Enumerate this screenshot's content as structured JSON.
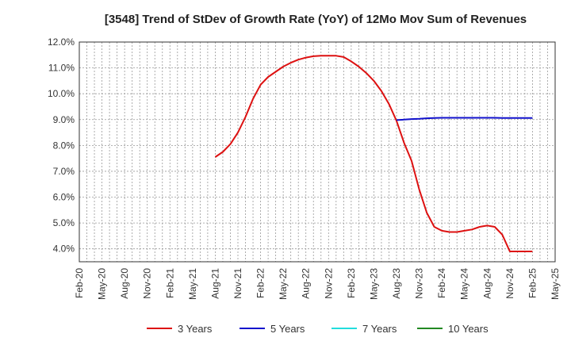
{
  "chart_data": {
    "type": "line",
    "title": "[3548]  Trend of StDev of Growth Rate (YoY) of 12Mo Mov Sum of Revenues",
    "xlabel": "",
    "ylabel": "",
    "ylim": [
      3.5,
      12.0
    ],
    "y_ticks": [
      4.0,
      5.0,
      6.0,
      7.0,
      8.0,
      9.0,
      10.0,
      11.0,
      12.0
    ],
    "y_tick_labels": [
      "4.0%",
      "5.0%",
      "6.0%",
      "7.0%",
      "8.0%",
      "9.0%",
      "10.0%",
      "11.0%",
      "12.0%"
    ],
    "x_tick_labels": [
      "Feb-20",
      "May-20",
      "Aug-20",
      "Nov-20",
      "Feb-21",
      "May-21",
      "Aug-21",
      "Nov-21",
      "Feb-22",
      "May-22",
      "Aug-22",
      "Nov-22",
      "Feb-23",
      "May-23",
      "Aug-23",
      "Nov-23",
      "Feb-24",
      "May-24",
      "Aug-24",
      "Nov-24",
      "Feb-25",
      "May-25"
    ],
    "x_range_months": [
      0,
      63
    ],
    "grid": true,
    "legend_position": "bottom",
    "series": [
      {
        "name": "3 Years",
        "color": "#dd1111",
        "x_months": [
          18,
          19,
          20,
          21,
          22,
          23,
          24,
          25,
          26,
          27,
          28,
          29,
          30,
          31,
          32,
          33,
          34,
          35,
          36,
          37,
          38,
          39,
          40,
          41,
          42,
          43,
          44,
          45,
          46,
          47,
          48,
          49,
          50,
          51,
          52,
          53,
          54,
          55,
          56,
          57,
          58,
          59,
          60
        ],
        "values": [
          7.55,
          7.75,
          8.05,
          8.5,
          9.1,
          9.8,
          10.35,
          10.65,
          10.85,
          11.05,
          11.2,
          11.32,
          11.4,
          11.45,
          11.47,
          11.47,
          11.47,
          11.42,
          11.25,
          11.05,
          10.8,
          10.5,
          10.1,
          9.6,
          8.95,
          8.1,
          7.4,
          6.3,
          5.4,
          4.85,
          4.7,
          4.65,
          4.65,
          4.7,
          4.75,
          4.85,
          4.9,
          4.85,
          4.55,
          3.9,
          3.9,
          3.9,
          3.9
        ]
      },
      {
        "name": "5 Years",
        "color": "#1111cc",
        "x_months": [
          42,
          43,
          44,
          45,
          46,
          47,
          48,
          49,
          50,
          51,
          52,
          53,
          54,
          55,
          56,
          57,
          58,
          59,
          60
        ],
        "values": [
          8.98,
          9.0,
          9.02,
          9.03,
          9.05,
          9.06,
          9.07,
          9.07,
          9.07,
          9.07,
          9.07,
          9.07,
          9.07,
          9.07,
          9.06,
          9.06,
          9.06,
          9.06,
          9.06
        ]
      },
      {
        "name": "7 Years",
        "color": "#22dddd",
        "x_months": [],
        "values": []
      },
      {
        "name": "10 Years",
        "color": "#228822",
        "x_months": [],
        "values": []
      }
    ]
  }
}
